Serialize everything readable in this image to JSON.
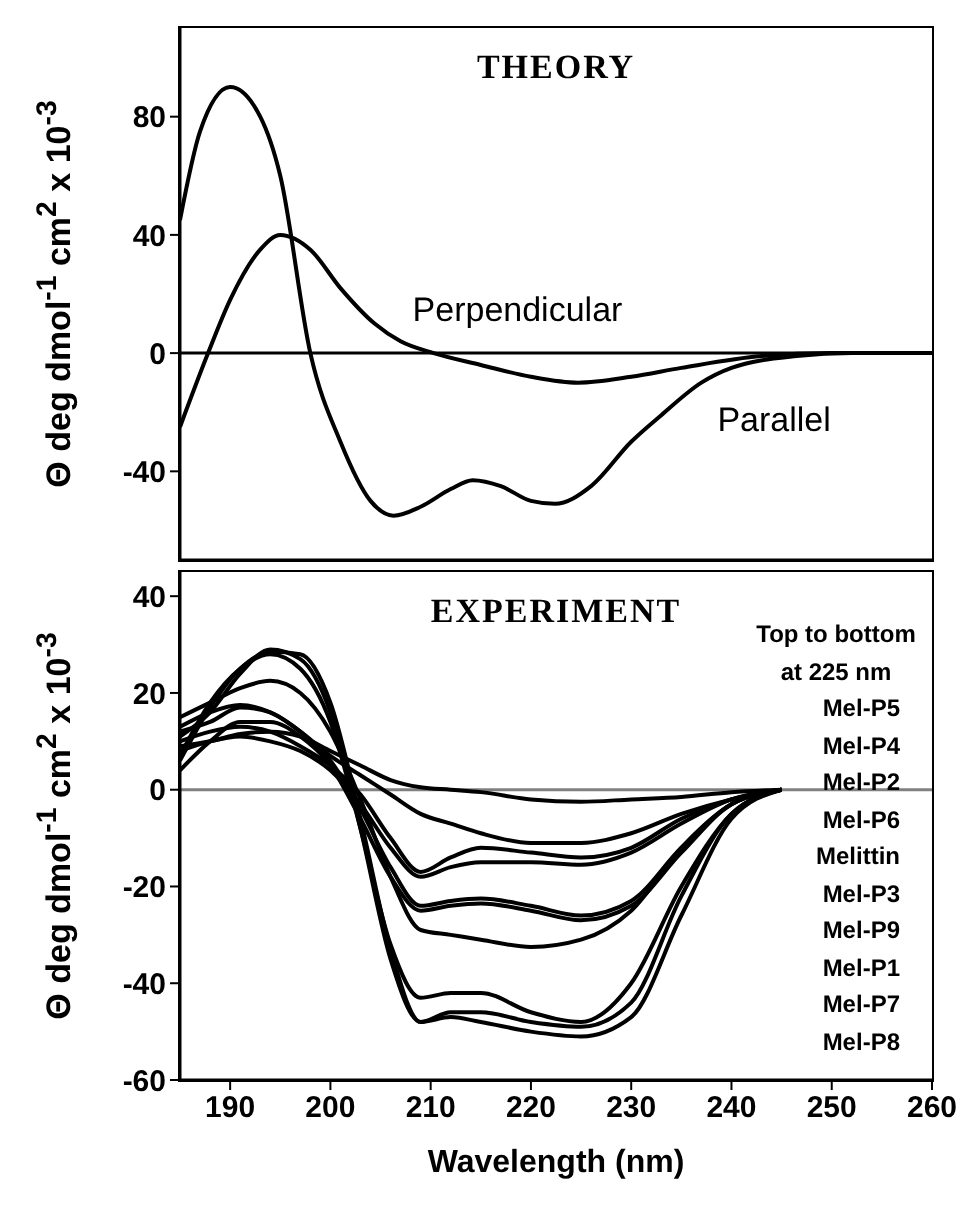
{
  "chart_data": [
    {
      "type": "line",
      "title": "THEORY",
      "ylabel": "Θ deg dmol$^{-1}$ cm$^{2}$ x 10$^{-3}$",
      "xlim": [
        185,
        260
      ],
      "xticks": [
        190,
        200,
        210,
        220,
        230,
        240,
        250,
        260
      ],
      "ylim": [
        -70,
        110
      ],
      "yticks": [
        -40,
        0,
        40,
        80
      ],
      "tick_labels": "y",
      "marker": "none",
      "grid": false,
      "legend": false,
      "ref_lines": [
        {
          "axis": "y",
          "value": 0,
          "color": "#000000"
        }
      ],
      "series": [
        {
          "name": "Perpendicular",
          "color": "#000000",
          "x": [
            185,
            187.8,
            190,
            193,
            195,
            198,
            201,
            204.4,
            207,
            210.3,
            215,
            220,
            224.7,
            230,
            235,
            243,
            250,
            260
          ],
          "values": [
            -25,
            0,
            18,
            35,
            40,
            35,
            22,
            10,
            4,
            0,
            -4,
            -8,
            -10,
            -8,
            -5,
            -1,
            0,
            0
          ]
        },
        {
          "name": "Parallel",
          "color": "#000000",
          "x": [
            185,
            187,
            190,
            193,
            195,
            198,
            201,
            204,
            206.3,
            209,
            212,
            214.2,
            217,
            220,
            222.4,
            226,
            230,
            233,
            237,
            240,
            246.5,
            252,
            260
          ],
          "values": [
            45,
            75,
            90,
            80,
            60,
            0,
            -30,
            -50,
            -55,
            -52,
            -46,
            -43,
            -45,
            -50,
            -51,
            -45,
            -30,
            -21,
            -10,
            -5,
            -1,
            0,
            0
          ]
        }
      ]
    },
    {
      "type": "line",
      "title": "EXPERIMENT",
      "ylabel": "Θ deg dmol$^{-1}$ cm$^{2}$ x 10$^{-3}$",
      "xlabel": "Wavelength (nm)",
      "legend_title": "Top to bottom at 225 nm",
      "legend": "right",
      "xlim": [
        185,
        260
      ],
      "xticks": [
        190,
        200,
        210,
        220,
        230,
        240,
        250,
        260
      ],
      "ylim": [
        -60,
        45
      ],
      "yticks": [
        -60,
        -40,
        -20,
        0,
        20,
        40
      ],
      "marker": "none",
      "grid": false,
      "ref_lines": [
        {
          "axis": "y",
          "value": 0,
          "color": "#808080"
        }
      ],
      "x": [
        185,
        188,
        191,
        194,
        197,
        200,
        203,
        206,
        209,
        212,
        215,
        220,
        225,
        230,
        235,
        240,
        245
      ],
      "series": [
        {
          "name": "Mel-P5",
          "color": "#000000",
          "values": [
            9,
            10,
            11.5,
            12,
            11,
            8,
            5,
            2,
            0.5,
            0,
            -0.5,
            -2,
            -2.5,
            -2,
            -1.5,
            -0.5,
            0
          ]
        },
        {
          "name": "Mel-P4",
          "color": "#000000",
          "values": [
            12,
            14,
            17,
            16,
            12,
            7,
            3,
            -1,
            -5,
            -7,
            -9,
            -11,
            -11,
            -9,
            -5,
            -2,
            0
          ]
        },
        {
          "name": "Mel-P2",
          "color": "#000000",
          "values": [
            10,
            12,
            13,
            12,
            9,
            5,
            -1,
            -10,
            -17,
            -14,
            -12,
            -13,
            -14,
            -12,
            -6,
            -2,
            0
          ]
        },
        {
          "name": "Mel-P6",
          "color": "#000000",
          "values": [
            8,
            10,
            11,
            10,
            8,
            4,
            -3,
            -12,
            -18,
            -16,
            -15,
            -15,
            -15.5,
            -13,
            -7,
            -2,
            0
          ]
        },
        {
          "name": "Melittin",
          "color": "#000000",
          "values": [
            13,
            16,
            17.5,
            16,
            12,
            6,
            -4,
            -16,
            -24,
            -23,
            -22.5,
            -24,
            -26,
            -23,
            -12,
            -3,
            0
          ]
        },
        {
          "name": "Mel-P3",
          "color": "#000000",
          "values": [
            4,
            10,
            14,
            14,
            11,
            5,
            -6,
            -18,
            -25,
            -24,
            -23.5,
            -25,
            -27,
            -24,
            -13,
            -3,
            0
          ]
        },
        {
          "name": "Mel-P9",
          "color": "#000000",
          "values": [
            15,
            18,
            21,
            22.5,
            20,
            12,
            -2,
            -18,
            -29,
            -30,
            -31,
            -32.5,
            -31,
            -25,
            -12,
            -3,
            0
          ]
        },
        {
          "name": "Mel-P1",
          "color": "#000000",
          "values": [
            7,
            18,
            25,
            28,
            25,
            14,
            -8,
            -32,
            -43,
            -42,
            -42,
            -46,
            -48,
            -40,
            -20,
            -5,
            0
          ]
        },
        {
          "name": "Mel-P7",
          "color": "#000000",
          "values": [
            11,
            16,
            24,
            29,
            27,
            16,
            -8,
            -35,
            -48,
            -46,
            -46,
            -48,
            -49,
            -44,
            -22,
            -5,
            0
          ]
        },
        {
          "name": "Mel-P8",
          "color": "#000000",
          "values": [
            6,
            17,
            25,
            28.5,
            28,
            18,
            -6,
            -33,
            -48,
            -47,
            -48,
            -50,
            -51,
            -47,
            -26,
            -6,
            0
          ]
        }
      ]
    }
  ]
}
